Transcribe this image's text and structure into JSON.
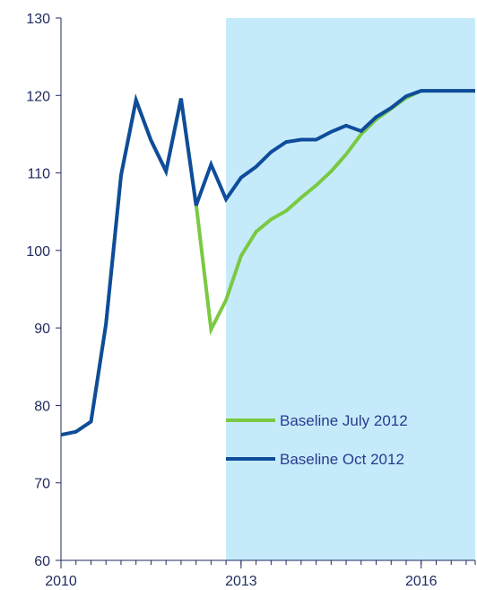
{
  "chart_data": {
    "type": "line",
    "title": "",
    "xlabel": "",
    "ylabel": "",
    "ylim": [
      60,
      130
    ],
    "yticks": [
      60,
      70,
      80,
      90,
      100,
      110,
      120,
      130
    ],
    "xlim": [
      2010,
      2016.9
    ],
    "xticks": [
      {
        "value": 2010,
        "label": "2010"
      },
      {
        "value": 2013,
        "label": "2013"
      },
      {
        "value": 2016,
        "label": "2016"
      }
    ],
    "x": [
      2010.0,
      2010.25,
      2010.5,
      2010.75,
      2011.0,
      2011.25,
      2011.5,
      2011.75,
      2012.0,
      2012.25,
      2012.5,
      2012.75,
      2013.0,
      2013.25,
      2013.5,
      2013.75,
      2014.0,
      2014.25,
      2014.5,
      2014.75,
      2015.0,
      2015.25,
      2015.5,
      2015.75,
      2016.0,
      2016.25,
      2016.5,
      2016.75,
      2016.9
    ],
    "forecast_shading": {
      "from": 2012.75,
      "to": 2016.9,
      "color": "#c5ebfb"
    },
    "grid": false,
    "legend": "bottom-right",
    "series": [
      {
        "name": "Baseline July 2012",
        "color": "#7ac943",
        "values": [
          76.2,
          76.6,
          77.9,
          90.5,
          109.7,
          119.4,
          114.2,
          110.2,
          119.6,
          106.0,
          89.8,
          93.6,
          99.3,
          102.4,
          104.0,
          105.1,
          106.8,
          108.4,
          110.2,
          112.4,
          115.0,
          116.9,
          118.3,
          119.7,
          120.6,
          120.6,
          120.6,
          120.6,
          120.6
        ]
      },
      {
        "name": "Baseline Oct 2012",
        "color": "#0f4c9b",
        "values": [
          76.2,
          76.6,
          77.9,
          90.5,
          109.7,
          119.4,
          114.2,
          110.2,
          119.6,
          105.8,
          111.1,
          106.6,
          109.4,
          110.8,
          112.7,
          114.0,
          114.3,
          114.3,
          115.3,
          116.1,
          115.4,
          117.2,
          118.4,
          119.9,
          120.6,
          120.6,
          120.6,
          120.6,
          120.6
        ]
      }
    ]
  }
}
